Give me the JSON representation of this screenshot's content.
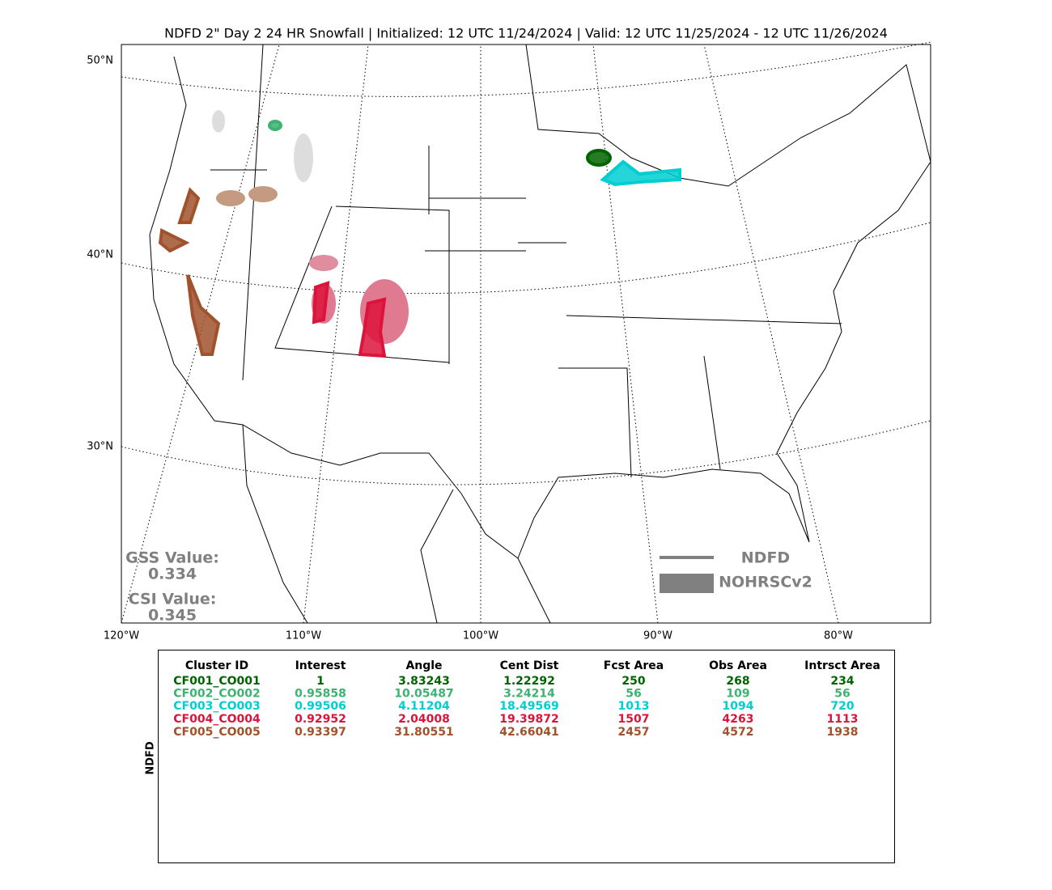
{
  "header": {
    "title": "NDFD 2\" Day 2 24 HR Snowfall | Initialized: 12 UTC 11/24/2024 | Valid: 12 UTC 11/25/2024 - 12 UTC 11/26/2024"
  },
  "map": {
    "lat_labels": [
      "50°N",
      "40°N",
      "30°N"
    ],
    "lon_labels": [
      "120°W",
      "110°W",
      "100°W",
      "90°W",
      "80°W"
    ]
  },
  "scores": [
    {
      "label": "GSS Value:",
      "value": "0.334"
    },
    {
      "label": "CSI Value:",
      "value": "0.345"
    }
  ],
  "legend": [
    {
      "label": "NDFD",
      "color": "#808080"
    },
    {
      "label": "NOHRSCv2",
      "color": "#808080"
    }
  ],
  "table": {
    "side_label": "NDFD",
    "columns": [
      "Cluster ID",
      "Interest",
      "Angle",
      "Cent Dist",
      "Fcst Area",
      "Obs Area",
      "Intrsct Area"
    ],
    "rows": [
      {
        "color": "#006400",
        "cells": [
          "CF001_CO001",
          "1",
          "3.83243",
          "1.22292",
          "250",
          "268",
          "234"
        ]
      },
      {
        "color": "#3cb371",
        "cells": [
          "CF002_CO002",
          "0.95858",
          "10.05487",
          "3.24214",
          "56",
          "109",
          "56"
        ]
      },
      {
        "color": "#00ced1",
        "cells": [
          "CF003_CO003",
          "0.99506",
          "4.11204",
          "18.49569",
          "1013",
          "1094",
          "720"
        ]
      },
      {
        "color": "#dc143c",
        "cells": [
          "CF004_CO004",
          "0.92952",
          "2.04008",
          "19.39872",
          "1507",
          "4263",
          "1113"
        ]
      },
      {
        "color": "#a0522d",
        "cells": [
          "CF005_CO005",
          "0.93397",
          "31.80551",
          "42.66041",
          "2457",
          "4572",
          "1938"
        ]
      }
    ]
  }
}
